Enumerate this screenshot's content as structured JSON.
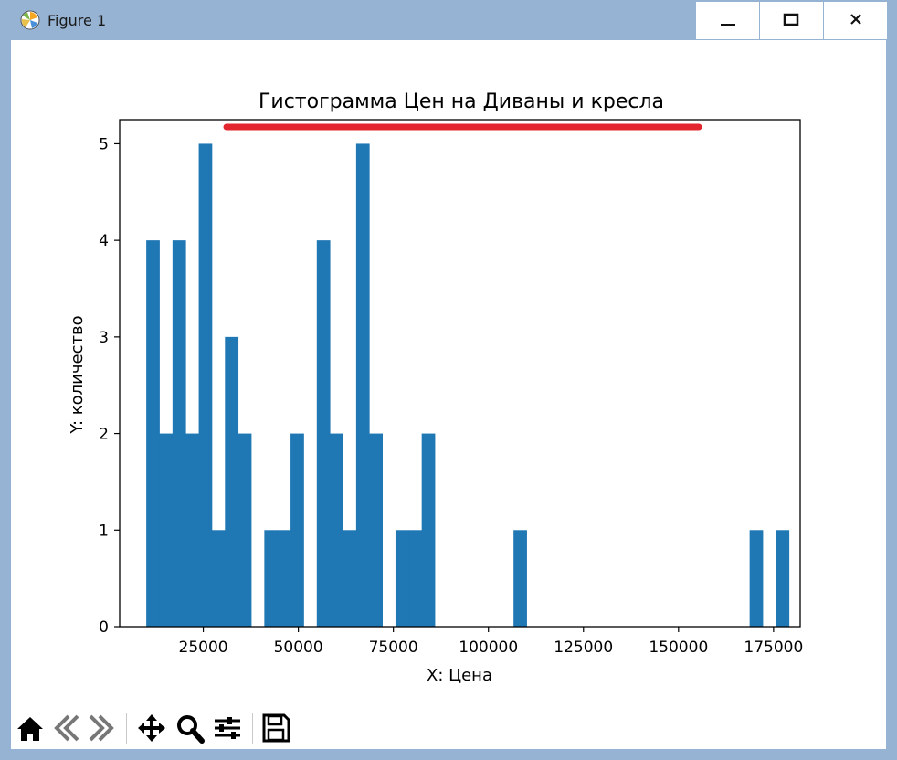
{
  "window": {
    "title": "Figure 1",
    "controls": {
      "minimize": "minimize-icon",
      "maximize": "maximize-icon",
      "close": "close-icon"
    }
  },
  "toolbar": {
    "buttons": [
      "home-icon",
      "back-icon",
      "forward-icon",
      "pan-icon",
      "zoom-icon",
      "configure-subplots-icon",
      "save-icon"
    ]
  },
  "colors": {
    "bar": "#1f77b4",
    "title_bar": "#96b3d3",
    "annotation": "#e3262e"
  },
  "chart_data": {
    "type": "bar",
    "title": "Гистограмма Цен на Диваны и кресла",
    "xlabel": "X: Цена",
    "ylabel": "Y: количество",
    "xlim": [
      3000,
      182000
    ],
    "ylim": [
      0,
      5.25
    ],
    "xticks": [
      25000,
      50000,
      75000,
      100000,
      125000,
      150000,
      175000
    ],
    "yticks": [
      0,
      1,
      2,
      3,
      4,
      5
    ],
    "bin_start": 10000,
    "bin_width": 3450,
    "counts": [
      4,
      2,
      4,
      2,
      5,
      1,
      3,
      2,
      0,
      1,
      1,
      2,
      0,
      4,
      2,
      1,
      5,
      2,
      0,
      1,
      1,
      2,
      0,
      0,
      0,
      0,
      0,
      0,
      1,
      0,
      0,
      0,
      0,
      0,
      0,
      0,
      0,
      0,
      0,
      0,
      0,
      0,
      0,
      0,
      0,
      0,
      1,
      0,
      1
    ],
    "grid": false,
    "annotation": {
      "type": "red underline beneath title"
    }
  }
}
